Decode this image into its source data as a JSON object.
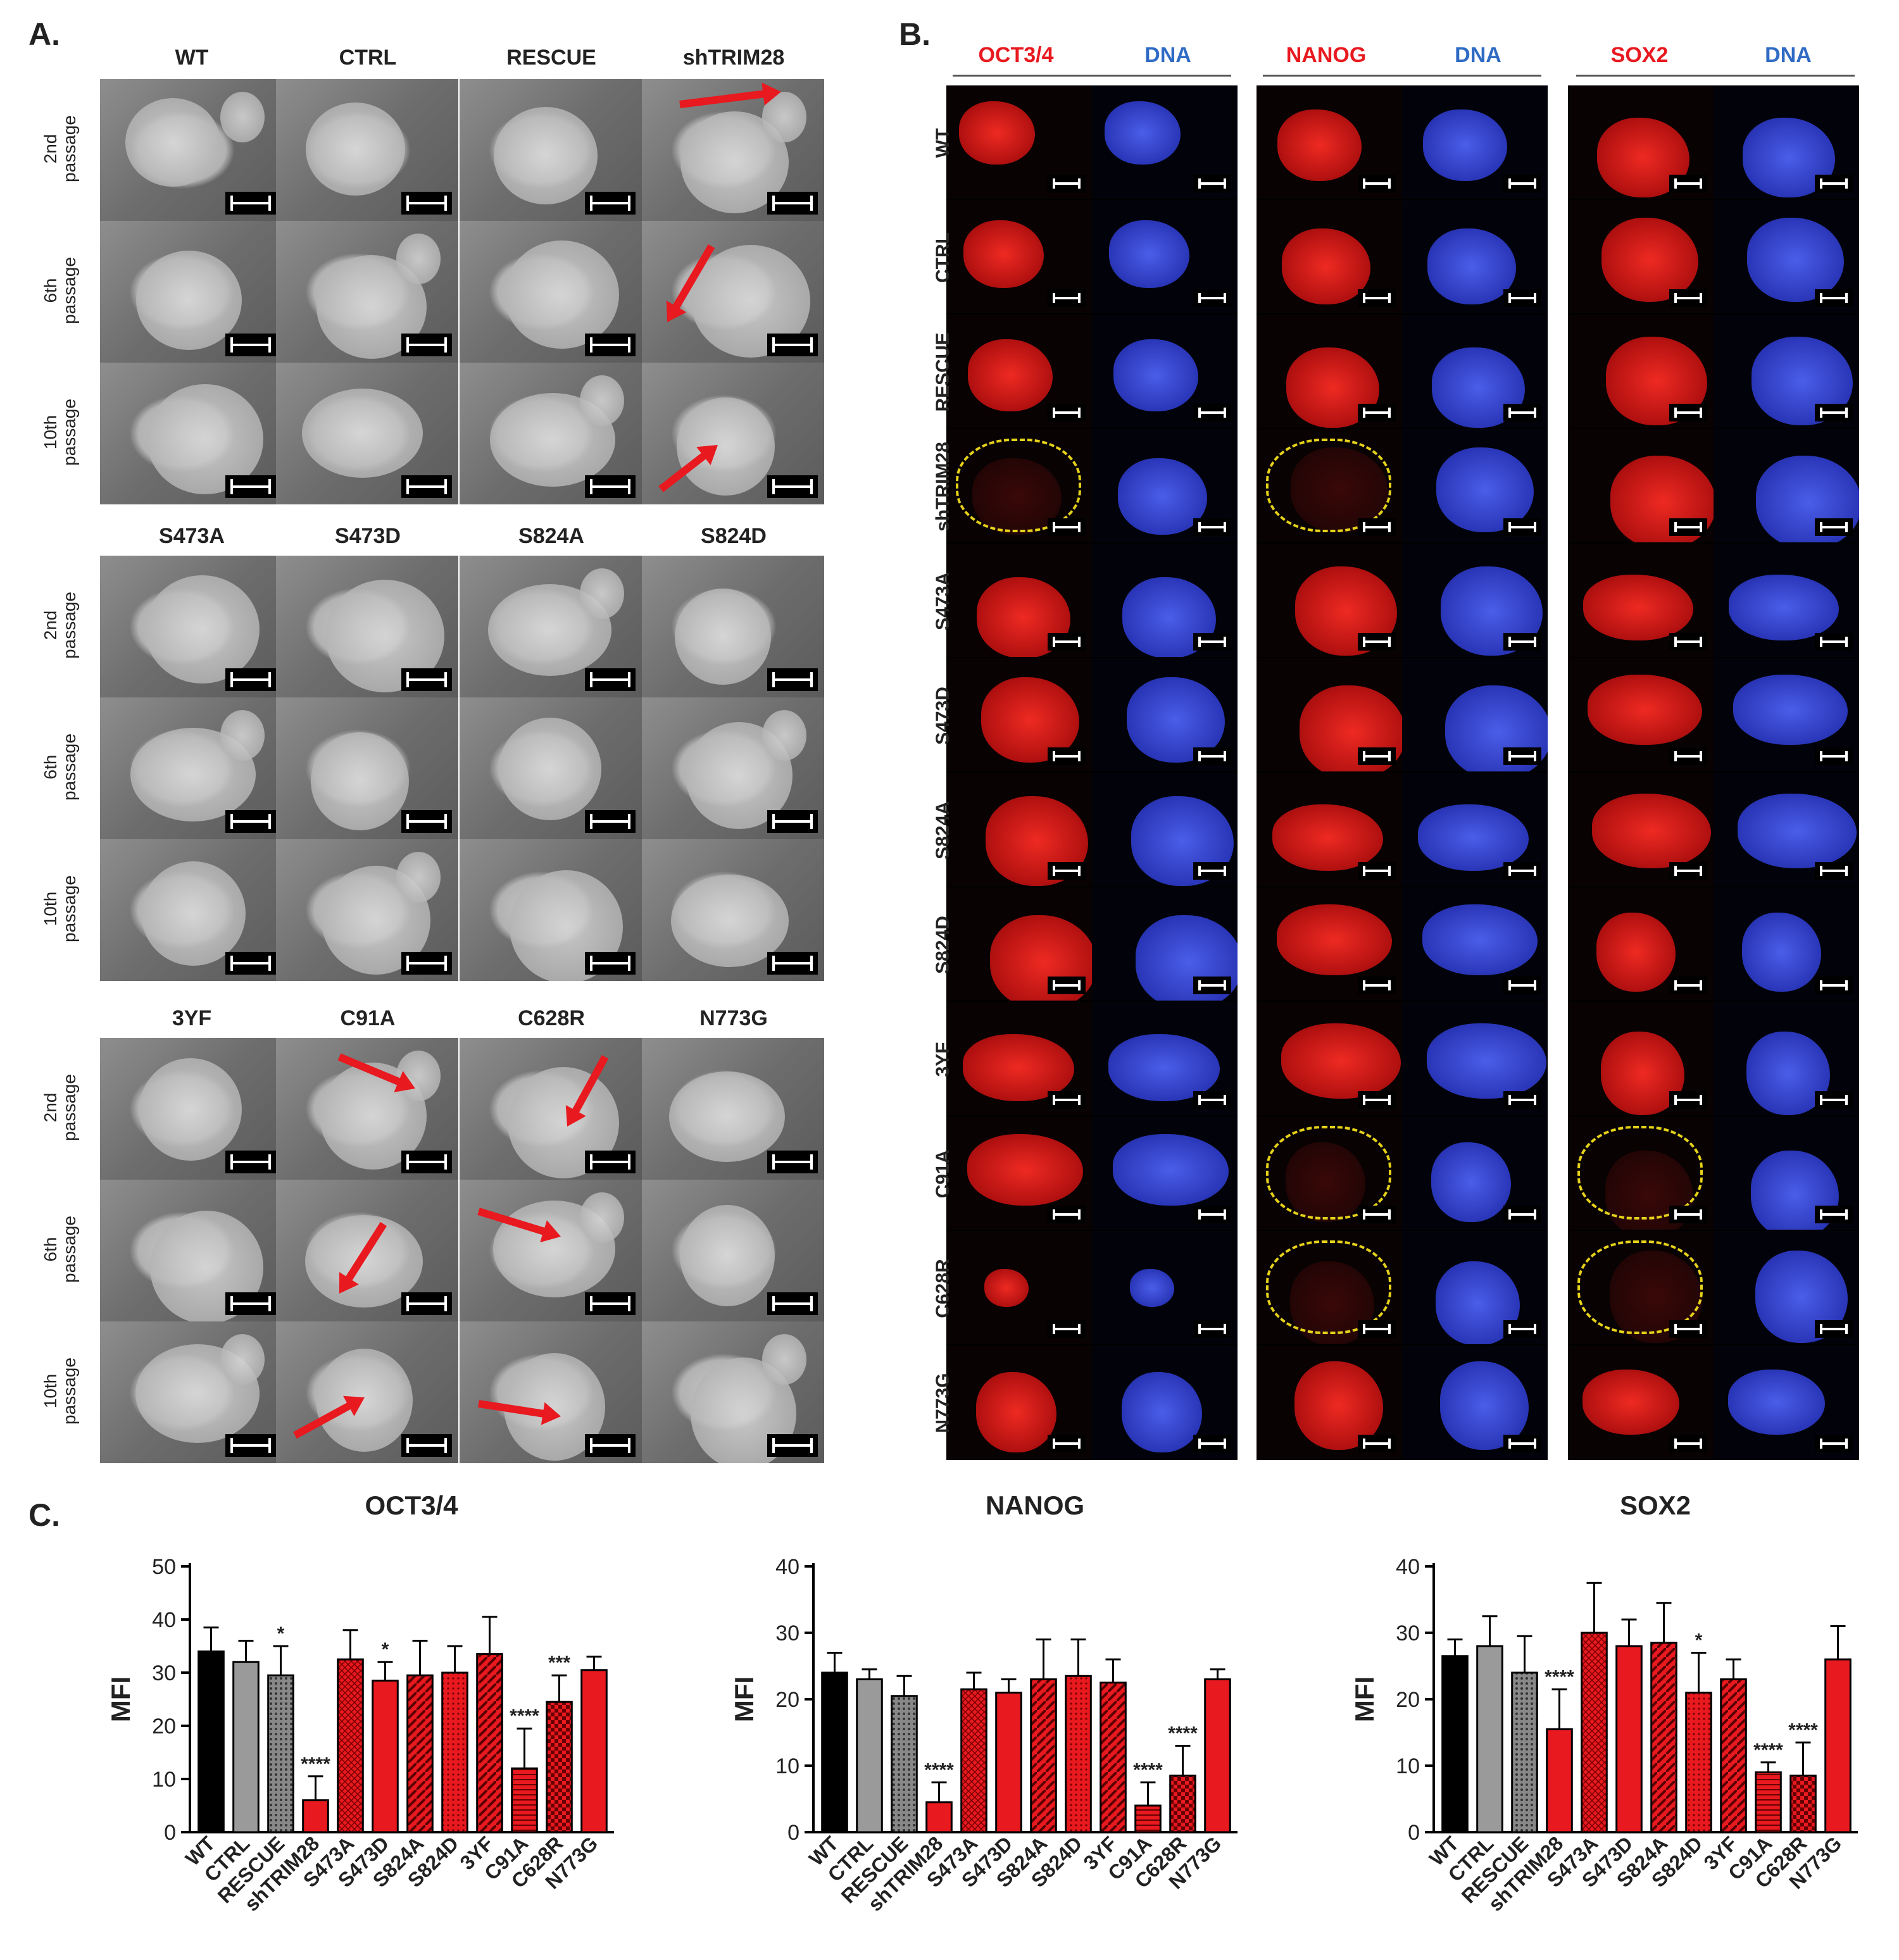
{
  "colors": {
    "red": "#e8191f",
    "blue": "#2f6bc4",
    "yellow": "#e6d21a",
    "text": "#222222"
  },
  "panelA": {
    "label": "A.",
    "groups": [
      {
        "columns": [
          "WT",
          "CTRL",
          "RESCUE",
          "shTRIM28"
        ]
      },
      {
        "columns": [
          "S473A",
          "S473D",
          "S824A",
          "S824D"
        ]
      },
      {
        "columns": [
          "3YF",
          "C91A",
          "C628R",
          "N773G"
        ]
      }
    ],
    "rows": [
      {
        "line1": "2nd",
        "line2": "passage"
      },
      {
        "line1": "6th",
        "line2": "passage"
      },
      {
        "line1": "10th",
        "line2": "passage"
      }
    ]
  },
  "panelB": {
    "label": "B.",
    "stains": [
      {
        "marker": "OCT3/4",
        "dna": "DNA"
      },
      {
        "marker": "NANOG",
        "dna": "DNA"
      },
      {
        "marker": "SOX2",
        "dna": "DNA"
      }
    ],
    "rows": [
      "WT",
      "CTRL",
      "RESCUE",
      "shTRIM28",
      "S473A",
      "S473D",
      "S824A",
      "S824D",
      "3YF",
      "C91A",
      "C628R",
      "N773G"
    ]
  },
  "panelC": {
    "label": "C."
  },
  "chart_data": [
    {
      "type": "bar",
      "title": "OCT3/4",
      "ylabel": "MFI",
      "ylim": [
        0,
        50
      ],
      "yticks": [
        0,
        10,
        20,
        30,
        40,
        50
      ],
      "categories": [
        "WT",
        "CTRL",
        "RESCUE",
        "shTRIM28",
        "S473A",
        "S473D",
        "S824A",
        "S824D",
        "3YF",
        "C91A",
        "C628R",
        "N773G"
      ],
      "values": [
        34,
        32,
        29.5,
        6,
        32.5,
        28.5,
        29.5,
        30,
        33.5,
        12,
        24.5,
        30.5
      ],
      "errors": [
        4.5,
        4,
        5.5,
        4.5,
        5.5,
        3.5,
        6.5,
        5,
        7,
        7.5,
        5,
        2.5
      ],
      "significance": [
        "",
        "",
        "*",
        "****",
        "",
        "*",
        "",
        "",
        "",
        "****",
        "***",
        ""
      ]
    },
    {
      "type": "bar",
      "title": "NANOG",
      "ylabel": "MFI",
      "ylim": [
        0,
        40
      ],
      "yticks": [
        0,
        10,
        20,
        30,
        40
      ],
      "categories": [
        "WT",
        "CTRL",
        "RESCUE",
        "shTRIM28",
        "S473A",
        "S473D",
        "S824A",
        "S824D",
        "3YF",
        "C91A",
        "C628R",
        "N773G"
      ],
      "values": [
        24,
        23,
        20.5,
        4.5,
        21.5,
        21,
        23,
        23.5,
        22.5,
        4,
        8.5,
        23
      ],
      "errors": [
        3,
        1.5,
        3,
        3,
        2.5,
        2,
        6,
        5.5,
        3.5,
        3.5,
        4.5,
        1.5
      ],
      "significance": [
        "",
        "",
        "",
        "****",
        "",
        "",
        "",
        "",
        "",
        "****",
        "****",
        ""
      ]
    },
    {
      "type": "bar",
      "title": "SOX2",
      "ylabel": "MFI",
      "ylim": [
        0,
        40
      ],
      "yticks": [
        0,
        10,
        20,
        30,
        40
      ],
      "categories": [
        "WT",
        "CTRL",
        "RESCUE",
        "shTRIM28",
        "S473A",
        "S473D",
        "S824A",
        "S824D",
        "3YF",
        "C91A",
        "C628R",
        "N773G"
      ],
      "values": [
        26.5,
        28,
        24,
        15.5,
        30,
        28,
        28.5,
        21,
        23,
        9,
        8.5,
        26
      ],
      "errors": [
        2.5,
        4.5,
        5.5,
        6,
        7.5,
        4,
        6,
        6,
        3,
        1.5,
        5,
        5
      ],
      "significance": [
        "",
        "",
        "",
        "****",
        "",
        "",
        "",
        "*",
        "",
        "****",
        "****",
        ""
      ]
    }
  ]
}
